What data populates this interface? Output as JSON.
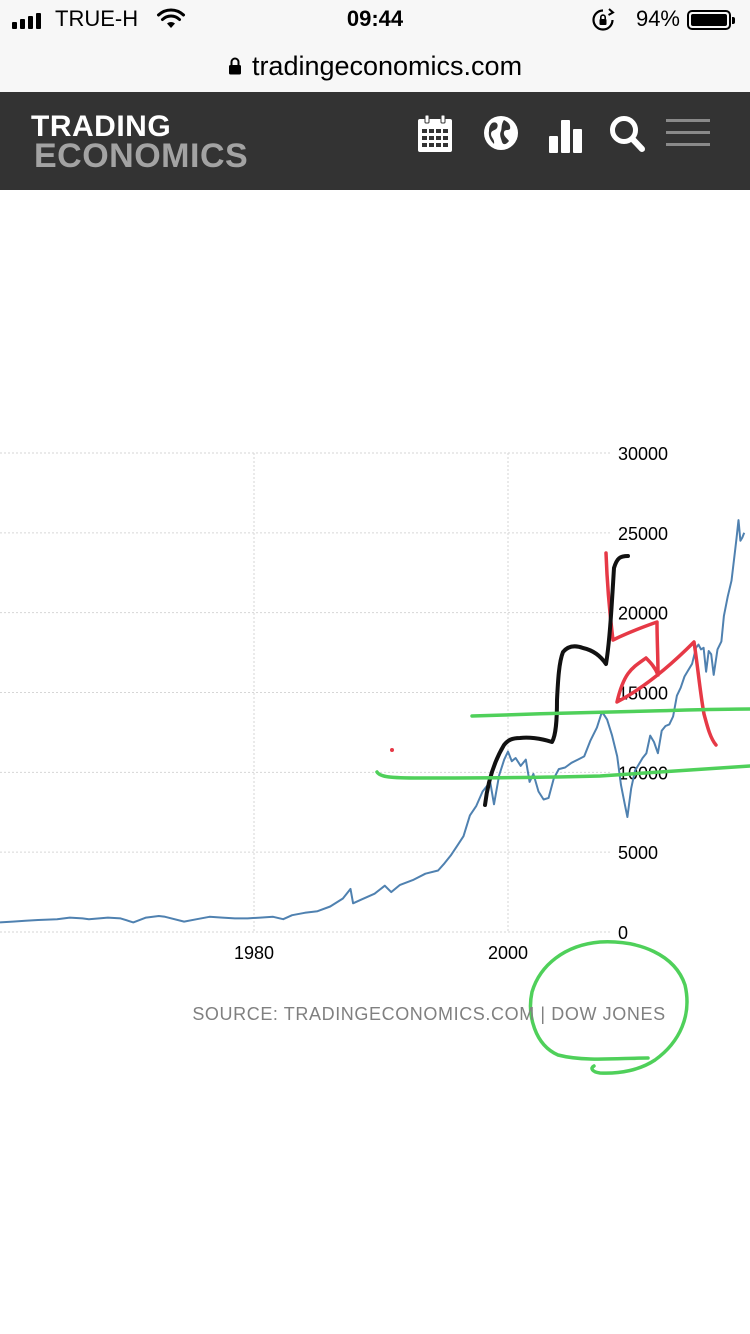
{
  "status_bar": {
    "carrier": "TRUE-H",
    "time": "09:44",
    "battery_percent": "94%",
    "signal_bars": 4,
    "battery_level": 0.94
  },
  "browser": {
    "url": "tradingeconomics.com"
  },
  "header": {
    "logo_line1": "TRADING",
    "logo_line2": "ECONOMICS",
    "icons": [
      "calendar-icon",
      "globe-icon",
      "bar-chart-icon",
      "search-icon",
      "menu-icon"
    ]
  },
  "chart_data": {
    "type": "line",
    "title": "",
    "xlabel": "",
    "ylabel": "",
    "xlim": [
      1960,
      2018.6
    ],
    "ylim": [
      0,
      30000
    ],
    "x_ticks": [
      1980,
      2000
    ],
    "x_tick_labels": [
      "1980",
      "2000"
    ],
    "y_ticks": [
      0,
      5000,
      10000,
      15000,
      20000,
      25000,
      30000
    ],
    "y_tick_labels": [
      "0",
      "5000",
      "10000",
      "15000",
      "20000",
      "25000",
      "30000"
    ],
    "grid": true,
    "axis_position": "right",
    "series": [
      {
        "color": "#4f81b0",
        "x": [
          1960.0,
          1961.0,
          1962.0,
          1963.0,
          1964.5,
          1965.5,
          1966.5,
          1967.0,
          1968.5,
          1969.5,
          1970.5,
          1971.5,
          1972.5,
          1973.0,
          1974.5,
          1975.5,
          1976.5,
          1977.5,
          1978.5,
          1979.5,
          1980.5,
          1981.5,
          1982.3,
          1983.0,
          1984.0,
          1985.0,
          1986.0,
          1987.0,
          1987.6,
          1987.8,
          1988.5,
          1989.5,
          1990.3,
          1990.8,
          1991.5,
          1992.5,
          1993.5,
          1994.5,
          1995.0,
          1995.5,
          1996.0,
          1996.5,
          1997.0,
          1997.5,
          1998.0,
          1998.6,
          1998.9,
          1999.3,
          1999.7,
          2000.0,
          2000.3,
          2000.6,
          2001.0,
          2001.4,
          2001.7,
          2002.0,
          2002.4,
          2002.8,
          2003.2,
          2003.6,
          2004.0,
          2004.5,
          2005.0,
          2005.5,
          2006.0,
          2006.5,
          2007.0,
          2007.4,
          2007.8,
          2008.2,
          2008.6,
          2008.9,
          2009.2,
          2009.4,
          2009.7,
          2010.0,
          2010.3,
          2010.6,
          2010.9,
          2011.2,
          2011.5,
          2011.8,
          2012.1,
          2012.4,
          2012.7,
          2013.0,
          2013.3,
          2013.6,
          2013.9,
          2014.2,
          2014.5,
          2014.8,
          2015.0,
          2015.2,
          2015.4,
          2015.6,
          2015.8,
          2016.0,
          2016.2,
          2016.5,
          2016.8,
          2017.0,
          2017.3,
          2017.6,
          2017.9,
          2018.0,
          2018.15,
          2018.3,
          2018.45,
          2018.6
        ],
        "y": [
          600,
          650,
          700,
          750,
          800,
          900,
          850,
          800,
          900,
          850,
          600,
          900,
          1000,
          950,
          650,
          800,
          950,
          900,
          850,
          850,
          900,
          950,
          800,
          1050,
          1200,
          1300,
          1600,
          2100,
          2700,
          1800,
          2050,
          2400,
          2900,
          2500,
          2950,
          3250,
          3650,
          3850,
          4300,
          4800,
          5400,
          6000,
          7300,
          7900,
          8800,
          9400,
          8000,
          9800,
          10800,
          11300,
          10700,
          10900,
          10400,
          10800,
          9400,
          9900,
          8800,
          8300,
          8400,
          9600,
          10200,
          10300,
          10600,
          10800,
          11000,
          12000,
          12800,
          13800,
          13300,
          12300,
          11000,
          9200,
          8000,
          7200,
          9000,
          10100,
          10500,
          10900,
          11200,
          12300,
          11900,
          11200,
          12600,
          12900,
          13000,
          13500,
          14800,
          15300,
          16000,
          16400,
          16800,
          17800,
          18000,
          17700,
          17800,
          16300,
          17600,
          17400,
          16100,
          17700,
          18200,
          19800,
          21000,
          22000,
          24000,
          24700,
          25800,
          24500,
          24700,
          25000
        ]
      }
    ],
    "annotations": [
      {
        "color": "#e63946",
        "note": "hand-drawn red zigzag"
      },
      {
        "color": "#111111",
        "note": "hand-drawn black staircase"
      },
      {
        "color": "#4fd05a",
        "note": "hand-drawn green lines and circle"
      }
    ]
  },
  "source": {
    "label": "SOURCE: TRADINGECONOMICS.COM | DOW JONES"
  }
}
